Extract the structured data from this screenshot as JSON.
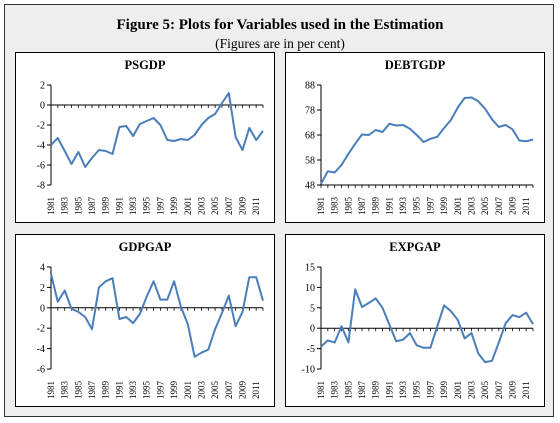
{
  "figure": {
    "title": "Figure 5: Plots for Variables used in the Estimation",
    "subtitle": "(Figures are in per cent)"
  },
  "style": {
    "line_color": "#4a7ebb",
    "panel_background": "#ffffff",
    "figure_background": "#eeeeee"
  },
  "chart_data": [
    {
      "type": "line",
      "title": "PSGDP",
      "ylim": [
        -8,
        2
      ],
      "yticks": [
        -8,
        -6,
        -4,
        -2,
        0,
        2
      ],
      "xlim": [
        1981,
        2012
      ],
      "xticks": [
        1981,
        1983,
        1985,
        1987,
        1989,
        1991,
        1993,
        1995,
        1997,
        1999,
        2001,
        2003,
        2005,
        2007,
        2009,
        2011
      ],
      "grid": false,
      "x": [
        1981,
        1982,
        1983,
        1984,
        1985,
        1986,
        1987,
        1988,
        1989,
        1990,
        1991,
        1992,
        1993,
        1994,
        1995,
        1996,
        1997,
        1998,
        1999,
        2000,
        2001,
        2002,
        2003,
        2004,
        2005,
        2006,
        2007,
        2008,
        2009,
        2010,
        2011,
        2012
      ],
      "values": [
        -4.0,
        -3.3,
        -4.6,
        -5.9,
        -4.7,
        -6.2,
        -5.3,
        -4.5,
        -4.6,
        -4.9,
        -2.2,
        -2.1,
        -3.1,
        -1.9,
        -1.6,
        -1.3,
        -2.0,
        -3.5,
        -3.6,
        -3.4,
        -3.5,
        -3.0,
        -2.0,
        -1.3,
        -0.9,
        0.2,
        1.2,
        -3.2,
        -4.5,
        -2.3,
        -3.5,
        -2.6
      ]
    },
    {
      "type": "line",
      "title": "DEBTGDP",
      "ylim": [
        48,
        88
      ],
      "yticks": [
        48,
        58,
        68,
        78,
        88
      ],
      "xlim": [
        1981,
        2012
      ],
      "xticks": [
        1981,
        1983,
        1985,
        1987,
        1989,
        1991,
        1993,
        1995,
        1997,
        1999,
        2001,
        2003,
        2005,
        2007,
        2009,
        2011
      ],
      "grid": false,
      "x": [
        1981,
        1982,
        1983,
        1984,
        1985,
        1986,
        1987,
        1988,
        1989,
        1990,
        1991,
        1992,
        1993,
        1994,
        1995,
        1996,
        1997,
        1998,
        1999,
        2000,
        2001,
        2002,
        2003,
        2004,
        2005,
        2006,
        2007,
        2008,
        2009,
        2010,
        2011,
        2012
      ],
      "values": [
        48.5,
        53.5,
        53.0,
        56.0,
        60.5,
        64.5,
        68.2,
        68.0,
        70.0,
        69.2,
        72.5,
        71.8,
        72.0,
        70.5,
        68.0,
        65.2,
        66.5,
        67.3,
        70.8,
        74.0,
        79.0,
        82.8,
        83.0,
        81.5,
        78.5,
        74.3,
        71.2,
        72.0,
        70.3,
        65.8,
        65.5,
        66.2
      ]
    },
    {
      "type": "line",
      "title": "GDPGAP",
      "ylim": [
        -6,
        4
      ],
      "yticks": [
        -6,
        -4,
        -2,
        0,
        2,
        4
      ],
      "xlim": [
        1981,
        2012
      ],
      "xticks": [
        1981,
        1983,
        1985,
        1987,
        1989,
        1991,
        1993,
        1995,
        1997,
        1999,
        2001,
        2003,
        2005,
        2007,
        2009,
        2011
      ],
      "grid": false,
      "x": [
        1981,
        1982,
        1983,
        1984,
        1985,
        1986,
        1987,
        1988,
        1989,
        1990,
        1991,
        1992,
        1993,
        1994,
        1995,
        1996,
        1997,
        1998,
        1999,
        2000,
        2001,
        2002,
        2003,
        2004,
        2005,
        2006,
        2007,
        2008,
        2009,
        2010,
        2011,
        2012
      ],
      "values": [
        3.3,
        0.6,
        1.7,
        -0.1,
        -0.4,
        -0.9,
        -2.1,
        2.0,
        2.6,
        2.9,
        -1.1,
        -0.9,
        -1.5,
        -0.6,
        1.1,
        2.6,
        0.8,
        0.8,
        2.6,
        0.1,
        -1.6,
        -4.8,
        -4.4,
        -4.1,
        -2.1,
        -0.5,
        1.2,
        -1.8,
        -0.4,
        3.0,
        3.0,
        0.7
      ]
    },
    {
      "type": "line",
      "title": "EXPGAP",
      "ylim": [
        -10,
        15
      ],
      "yticks": [
        -10,
        -5,
        0,
        5,
        10,
        15
      ],
      "xlim": [
        1981,
        2012
      ],
      "xticks": [
        1981,
        1983,
        1985,
        1987,
        1989,
        1991,
        1993,
        1995,
        1997,
        1999,
        2001,
        2003,
        2005,
        2007,
        2009,
        2011
      ],
      "grid": false,
      "x": [
        1981,
        1982,
        1983,
        1984,
        1985,
        1986,
        1987,
        1988,
        1989,
        1990,
        1991,
        1992,
        1993,
        1994,
        1995,
        1996,
        1997,
        1998,
        1999,
        2000,
        2001,
        2002,
        2003,
        2004,
        2005,
        2006,
        2007,
        2008,
        2009,
        2010,
        2011,
        2012
      ],
      "values": [
        -4.5,
        -3.0,
        -3.5,
        0.5,
        -3.5,
        9.5,
        5.2,
        6.2,
        7.3,
        5.0,
        0.8,
        -3.2,
        -2.8,
        -1.2,
        -4.2,
        -4.8,
        -4.8,
        0.5,
        5.6,
        4.2,
        2.0,
        -2.5,
        -1.2,
        -6.2,
        -8.3,
        -8.0,
        -3.5,
        1.2,
        3.2,
        2.7,
        3.8,
        1.0
      ]
    }
  ]
}
